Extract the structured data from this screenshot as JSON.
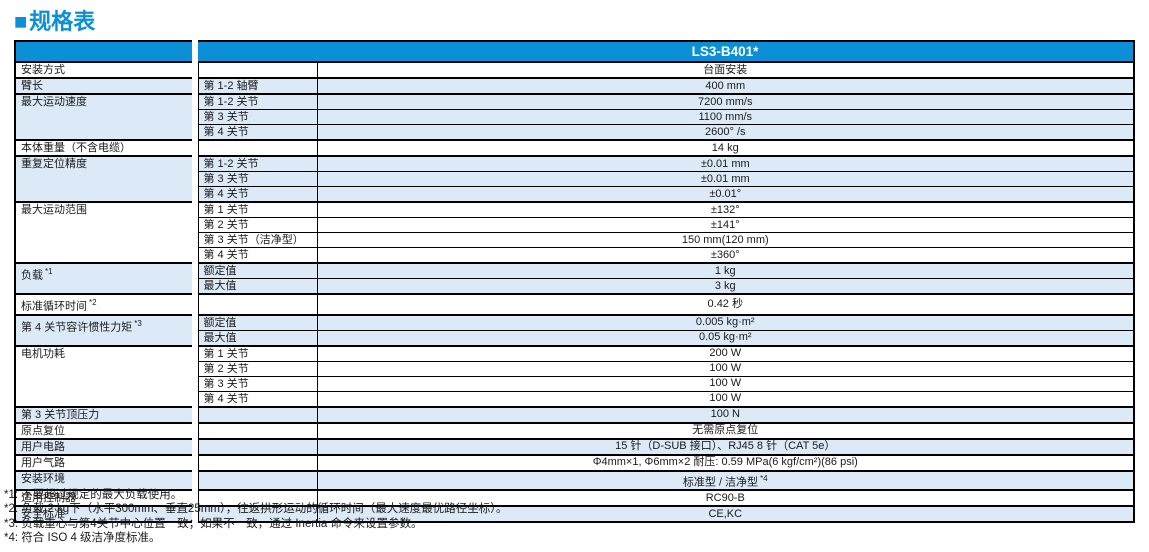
{
  "page": {
    "title_marker": "■",
    "title": "规格表",
    "colors": {
      "accent_blue": "#0b8fd6",
      "row_light_blue": "#dce9f6",
      "border": "#000000"
    }
  },
  "table": {
    "header": {
      "model": "LS3-B401*"
    },
    "groups": [
      {
        "label": "安装方式",
        "shade": "white",
        "rows": [
          {
            "sub": "",
            "value": "台面安装"
          }
        ]
      },
      {
        "label": "臂长",
        "shade": "blue",
        "rows": [
          {
            "sub": "第 1-2 轴臂",
            "value": "400 mm"
          }
        ]
      },
      {
        "label": "最大运动速度",
        "shade": "blue",
        "rows": [
          {
            "sub": "第 1-2 关节",
            "value": "7200 mm/s"
          },
          {
            "sub": "第 3 关节",
            "value": "1100 mm/s"
          },
          {
            "sub": "第 4 关节",
            "value": "2600° /s"
          }
        ]
      },
      {
        "label": "本体重量（不含电缆）",
        "shade": "white",
        "rows": [
          {
            "sub": "",
            "value": "14 kg"
          }
        ]
      },
      {
        "label": "重复定位精度",
        "shade": "blue",
        "rows": [
          {
            "sub": "第 1-2 关节",
            "value": "±0.01 mm"
          },
          {
            "sub": "第 3 关节",
            "value": "±0.01 mm"
          },
          {
            "sub": "第 4 关节",
            "value": "±0.01°"
          }
        ]
      },
      {
        "label": "最大运动范围",
        "shade": "white",
        "rows": [
          {
            "sub": "第 1 关节",
            "value": "±132°"
          },
          {
            "sub": "第 2 关节",
            "value": "±141°"
          },
          {
            "sub": "第 3 关节（洁净型）",
            "value": "150 mm(120 mm)"
          },
          {
            "sub": "第 4 关节",
            "value": "±360°"
          }
        ]
      },
      {
        "label": "负载",
        "sup": "*1",
        "shade": "blue",
        "rows": [
          {
            "sub": "额定值",
            "value": "1 kg"
          },
          {
            "sub": "最大值",
            "value": "3 kg"
          }
        ]
      },
      {
        "label": "标准循环时间",
        "sup": "*2",
        "shade": "white",
        "rows": [
          {
            "sub": "",
            "value": "0.42 秒"
          }
        ]
      },
      {
        "label": "第 4 关节容许惯性力矩",
        "sup": "*3",
        "shade": "blue",
        "rows": [
          {
            "sub": "额定值",
            "value": "0.005 kg·m²"
          },
          {
            "sub": "最大值",
            "value": "0.05 kg·m²"
          }
        ]
      },
      {
        "label": "电机功耗",
        "shade": "white",
        "rows": [
          {
            "sub": "第 1 关节",
            "value": "200 W"
          },
          {
            "sub": "第 2 关节",
            "value": "100 W"
          },
          {
            "sub": "第 3 关节",
            "value": "100 W"
          },
          {
            "sub": "第 4 关节",
            "value": "100 W"
          }
        ]
      },
      {
        "label": "第 3 关节顶压力",
        "shade": "blue",
        "rows": [
          {
            "sub": "",
            "value": "100 N"
          }
        ]
      },
      {
        "label": "原点复位",
        "shade": "white",
        "rows": [
          {
            "sub": "",
            "value": "无需原点复位"
          }
        ]
      },
      {
        "label": "用户电路",
        "shade": "blue",
        "rows": [
          {
            "sub": "",
            "value": "15 针（D-SUB 接口）、RJ45 8 针（CAT 5e）"
          }
        ]
      },
      {
        "label": "用户气路",
        "shade": "white",
        "rows": [
          {
            "sub": "",
            "value": "Φ4mm×1, Φ6mm×2  耐压: 0.59 MPa(6 kgf/cm²)(86 psi)"
          }
        ]
      },
      {
        "label": "安装环境",
        "shade": "blue",
        "rows": [
          {
            "sub": "",
            "value": "标准型 / 洁净型",
            "value_sup": "*4"
          }
        ]
      },
      {
        "label": "适用控制器",
        "shade": "white",
        "rows": [
          {
            "sub": "",
            "value": "RC90-B"
          }
        ]
      },
      {
        "label": "安全标准",
        "shade": "blue",
        "rows": [
          {
            "sub": "",
            "value": "CE,KC"
          }
        ]
      }
    ]
  },
  "footnotes": [
    "*1: 不要超过规定的最大负载使用。",
    "*2: 负载 2 kg下（水平300mm、垂直25mm），往返拱形运动的循环时间（最大速度最优路径坐标）。",
    "*3: 负载重心与第4关节中心位置一致；如果不一致，通过 Inertia 命令来设置参数。",
    "*4: 符合 ISO 4 级洁净度标准。"
  ]
}
